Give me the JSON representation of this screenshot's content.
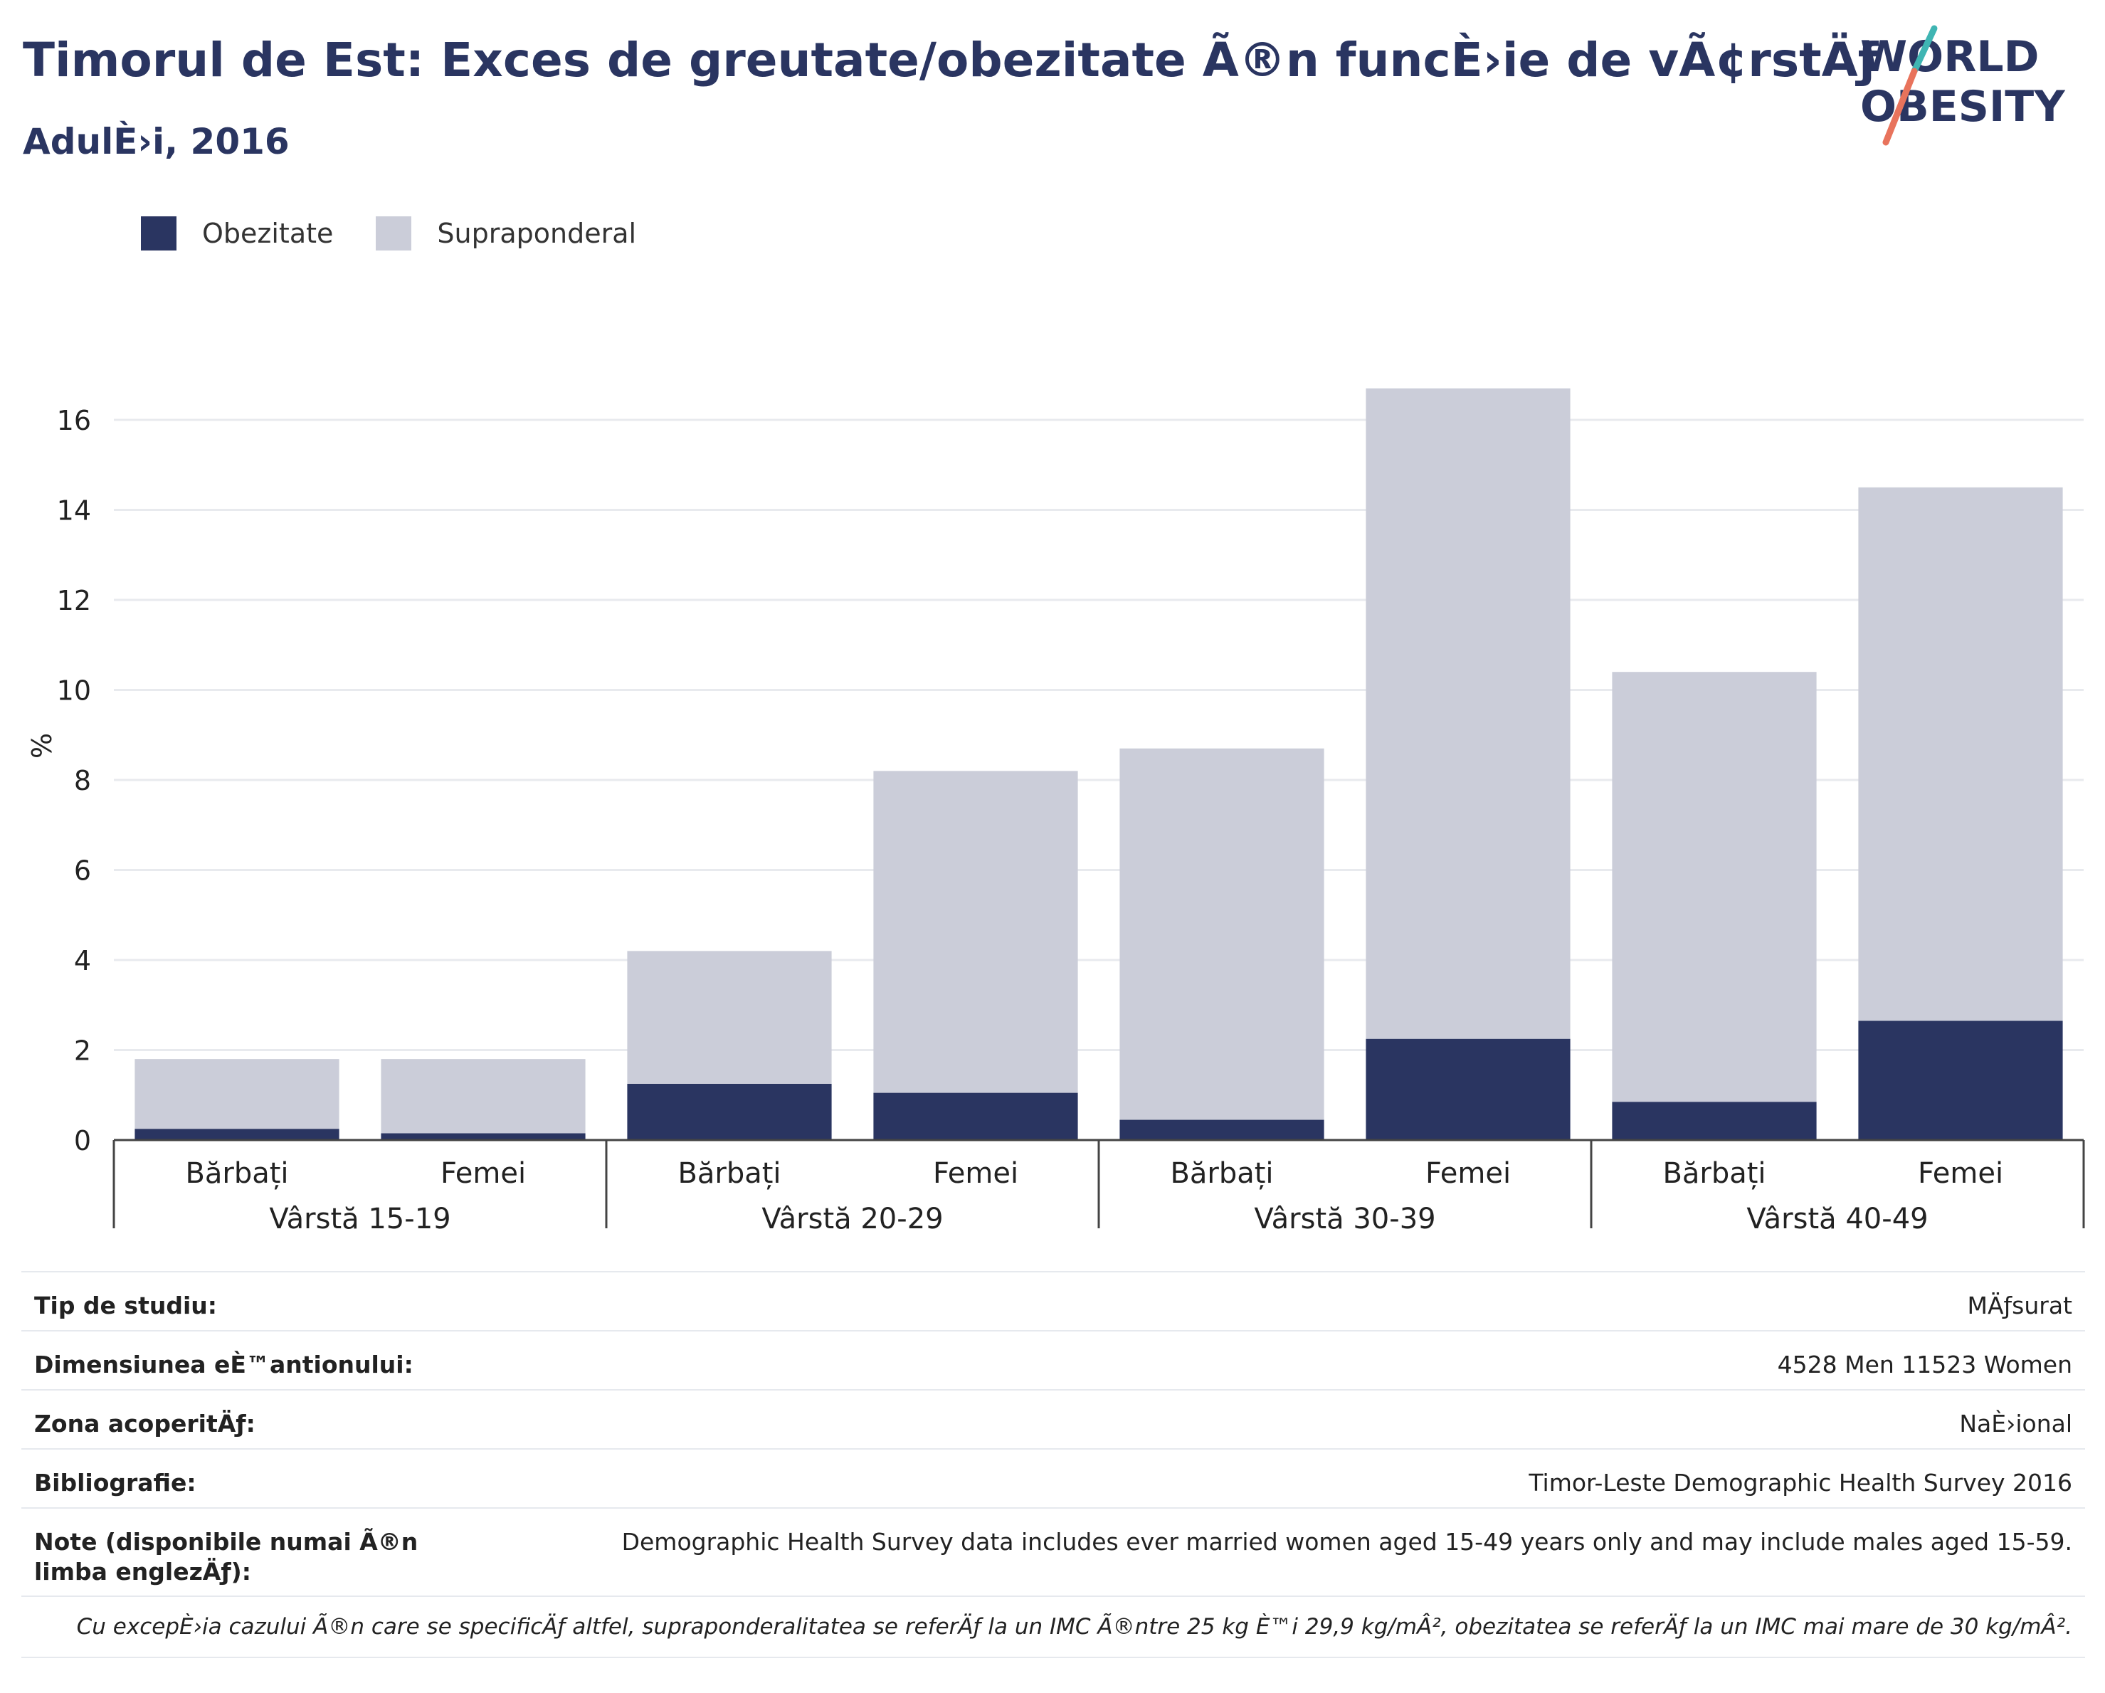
{
  "header": {
    "title": "Timorul de Est: Exces de greutate/obezitate Ã®n funcÈ›ie de vÃ¢rstÄƒ",
    "subtitle": "AdulÈ›i, 2016"
  },
  "logo": {
    "line1": "WORLD",
    "line2": "OBESITY",
    "icon": "world-obesity-logo"
  },
  "legend": [
    {
      "label": "Obezitate",
      "color": "#2a3561"
    },
    {
      "label": "Supraponderal",
      "color": "#cbcdd9"
    }
  ],
  "chart_data": {
    "type": "bar",
    "stacked": true,
    "ylabel": "%",
    "ylim": [
      0,
      17.5
    ],
    "yticks": [
      0,
      2,
      4,
      6,
      8,
      10,
      12,
      14,
      16
    ],
    "grid": true,
    "legend_position": "top-left",
    "groups": [
      "Vârstă 15-19",
      "Vârstă 20-29",
      "Vârstă 30-39",
      "Vârstă 40-49"
    ],
    "categories": [
      "Bărbați",
      "Femei",
      "Bărbați",
      "Femei",
      "Bărbați",
      "Femei",
      "Bărbați",
      "Femei"
    ],
    "series": [
      {
        "name": "Obezitate",
        "color": "#2a3561",
        "values": [
          0.25,
          0.15,
          1.25,
          1.05,
          0.45,
          2.25,
          0.85,
          2.65
        ]
      },
      {
        "name": "Supraponderal",
        "color": "#cbcdd9",
        "values": [
          1.55,
          1.65,
          2.95,
          7.15,
          8.25,
          14.45,
          9.55,
          11.85
        ]
      }
    ]
  },
  "info": {
    "rows": [
      {
        "label": "Tip de studiu:",
        "value": "MÄƒsurat"
      },
      {
        "label": "Dimensiunea eÈ™antionului:",
        "value": "4528 Men 11523 Women"
      },
      {
        "label": "Zona acoperitÄƒ:",
        "value": "NaÈ›ional"
      },
      {
        "label": "Bibliografie:",
        "value": "Timor-Leste Demographic Health Survey 2016"
      },
      {
        "label": "Note (disponibile numai Ã®n limba englezÄƒ):",
        "value": "Demographic Health Survey data includes ever married women aged 15-49 years only and may include males aged 15-59."
      }
    ],
    "footnote": "Cu excepÈ›ia cazului Ã®n care se specificÄƒ altfel, supraponderalitatea se referÄƒ la un IMC Ã®ntre 25 kg È™i 29,9 kg/mÂ², obezitatea se referÄƒ la un IMC mai mare de 30 kg/mÂ²."
  }
}
